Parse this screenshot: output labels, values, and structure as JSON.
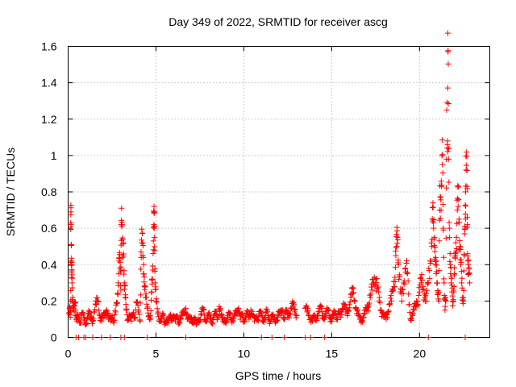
{
  "chart_data": {
    "type": "scatter",
    "title": "Day 349 of 2022, SRMTID for receiver ascg",
    "xlabel": "GPS time / hours",
    "ylabel": "SRMTID / TECUs",
    "xlim": [
      0,
      24
    ],
    "ylim": [
      0,
      1.6
    ],
    "xticks": [
      0,
      5,
      10,
      15,
      20
    ],
    "xtick_labels": [
      "0",
      "5",
      "10",
      "15",
      "20"
    ],
    "yticks": [
      0,
      0.2,
      0.4,
      0.6,
      0.8,
      1.0,
      1.2,
      1.4,
      1.6
    ],
    "ytick_labels": [
      "0",
      "0.2",
      "0.4",
      "0.6",
      "0.8",
      "1",
      "1.2",
      "1.4",
      "1.6"
    ],
    "grid": true,
    "marker": "plus",
    "color": "#ff0000",
    "series": [
      {
        "name": "SRMTID",
        "points": [
          [
            0.05,
            0.13
          ],
          [
            0.1,
            0.15
          ],
          [
            0.12,
            0.11
          ],
          [
            0.15,
            0.2
          ],
          [
            0.15,
            0.63
          ],
          [
            0.16,
            0.61
          ],
          [
            0.18,
            0.51
          ],
          [
            0.2,
            0.42
          ],
          [
            0.2,
            0.33
          ],
          [
            0.22,
            0.3
          ],
          [
            0.25,
            0.22
          ],
          [
            0.3,
            0.17
          ],
          [
            0.35,
            0.14
          ],
          [
            0.4,
            0.19
          ],
          [
            0.45,
            0.12
          ],
          [
            0.5,
            0.09
          ],
          [
            0.55,
            0.11
          ],
          [
            0.6,
            0.1
          ],
          [
            0.7,
            0.08
          ],
          [
            0.8,
            0.13
          ],
          [
            0.9,
            0.1
          ],
          [
            1.0,
            0.07
          ],
          [
            1.1,
            0.11
          ],
          [
            1.2,
            0.13
          ],
          [
            1.3,
            0.1
          ],
          [
            1.4,
            0.09
          ],
          [
            1.5,
            0.14
          ],
          [
            1.6,
            0.18
          ],
          [
            1.7,
            0.2
          ],
          [
            1.8,
            0.12
          ],
          [
            1.9,
            0.09
          ],
          [
            2.0,
            0.11
          ],
          [
            2.1,
            0.13
          ],
          [
            2.2,
            0.15
          ],
          [
            2.3,
            0.1
          ],
          [
            2.4,
            0.09
          ],
          [
            2.5,
            0.12
          ],
          [
            2.6,
            0.08
          ],
          [
            2.7,
            0.14
          ],
          [
            2.8,
            0.19
          ],
          [
            2.85,
            0.3
          ],
          [
            2.9,
            0.42
          ],
          [
            2.95,
            0.38
          ],
          [
            3.0,
            0.26
          ],
          [
            3.02,
            0.62
          ],
          [
            3.05,
            0.61
          ],
          [
            3.1,
            0.44
          ],
          [
            3.15,
            0.52
          ],
          [
            3.2,
            0.3
          ],
          [
            3.25,
            0.22
          ],
          [
            3.3,
            0.15
          ],
          [
            3.4,
            0.1
          ],
          [
            3.5,
            0.12
          ],
          [
            3.6,
            0.09
          ],
          [
            3.7,
            0.13
          ],
          [
            3.8,
            0.11
          ],
          [
            3.9,
            0.19
          ],
          [
            4.0,
            0.14
          ],
          [
            4.1,
            0.09
          ],
          [
            4.15,
            0.47
          ],
          [
            4.2,
            0.52
          ],
          [
            4.25,
            0.45
          ],
          [
            4.3,
            0.4
          ],
          [
            4.35,
            0.28
          ],
          [
            4.4,
            0.22
          ],
          [
            4.5,
            0.16
          ],
          [
            4.6,
            0.12
          ],
          [
            4.7,
            0.1
          ],
          [
            4.75,
            0.25
          ],
          [
            4.8,
            0.32
          ],
          [
            4.85,
            0.53
          ],
          [
            4.88,
            0.62
          ],
          [
            4.9,
            0.6
          ],
          [
            4.92,
            0.55
          ],
          [
            4.95,
            0.3
          ],
          [
            5.0,
            0.2
          ],
          [
            5.1,
            0.13
          ],
          [
            5.2,
            0.1
          ],
          [
            5.3,
            0.09
          ],
          [
            5.4,
            0.12
          ],
          [
            5.5,
            0.07
          ],
          [
            5.6,
            0.1
          ],
          [
            5.7,
            0.08
          ],
          [
            5.8,
            0.11
          ],
          [
            5.9,
            0.1
          ],
          [
            6.0,
            0.12
          ],
          [
            6.1,
            0.09
          ],
          [
            6.2,
            0.11
          ],
          [
            6.3,
            0.08
          ],
          [
            6.4,
            0.1
          ],
          [
            6.5,
            0.12
          ],
          [
            6.6,
            0.13
          ],
          [
            6.7,
            0.16
          ],
          [
            6.8,
            0.1
          ],
          [
            6.9,
            0.09
          ],
          [
            7.0,
            0.11
          ],
          [
            7.1,
            0.08
          ],
          [
            7.2,
            0.1
          ],
          [
            7.3,
            0.07
          ],
          [
            7.4,
            0.1
          ],
          [
            7.5,
            0.09
          ],
          [
            7.6,
            0.13
          ],
          [
            7.7,
            0.15
          ],
          [
            7.8,
            0.1
          ],
          [
            7.9,
            0.09
          ],
          [
            8.0,
            0.12
          ],
          [
            8.1,
            0.1
          ],
          [
            8.2,
            0.08
          ],
          [
            8.3,
            0.11
          ],
          [
            8.4,
            0.13
          ],
          [
            8.5,
            0.1
          ],
          [
            8.6,
            0.17
          ],
          [
            8.7,
            0.12
          ],
          [
            8.8,
            0.09
          ],
          [
            8.9,
            0.1
          ],
          [
            9.0,
            0.08
          ],
          [
            9.1,
            0.11
          ],
          [
            9.2,
            0.13
          ],
          [
            9.3,
            0.1
          ],
          [
            9.4,
            0.09
          ],
          [
            9.5,
            0.12
          ],
          [
            9.6,
            0.14
          ],
          [
            9.7,
            0.16
          ],
          [
            9.8,
            0.1
          ],
          [
            9.9,
            0.12
          ],
          [
            10.0,
            0.09
          ],
          [
            10.1,
            0.11
          ],
          [
            10.2,
            0.13
          ],
          [
            10.3,
            0.1
          ],
          [
            10.4,
            0.15
          ],
          [
            10.5,
            0.12
          ],
          [
            10.6,
            0.09
          ],
          [
            10.7,
            0.11
          ],
          [
            10.8,
            0.1
          ],
          [
            10.9,
            0.13
          ],
          [
            11.0,
            0.12
          ],
          [
            11.1,
            0.09
          ],
          [
            11.2,
            0.11
          ],
          [
            11.3,
            0.14
          ],
          [
            11.4,
            0.1
          ],
          [
            11.5,
            0.09
          ],
          [
            11.6,
            0.12
          ],
          [
            11.7,
            0.1
          ],
          [
            11.8,
            0.08
          ],
          [
            11.9,
            0.11
          ],
          [
            12.0,
            0.13
          ],
          [
            12.1,
            0.12
          ],
          [
            12.2,
            0.15
          ],
          [
            12.3,
            0.1
          ],
          [
            12.4,
            0.14
          ],
          [
            12.5,
            0.11
          ],
          [
            12.6,
            0.13
          ],
          [
            12.7,
            0.16
          ],
          [
            12.8,
            0.17
          ],
          [
            12.9,
            0.14
          ],
          [
            13.0,
            0.12
          ],
          [
            13.5,
            0.16
          ],
          [
            13.6,
            0.14
          ],
          [
            13.7,
            0.12
          ],
          [
            13.8,
            0.1
          ],
          [
            13.9,
            0.09
          ],
          [
            14.0,
            0.11
          ],
          [
            14.1,
            0.1
          ],
          [
            14.2,
            0.12
          ],
          [
            14.3,
            0.14
          ],
          [
            14.4,
            0.16
          ],
          [
            14.5,
            0.12
          ],
          [
            14.6,
            0.1
          ],
          [
            14.7,
            0.13
          ],
          [
            14.8,
            0.15
          ],
          [
            14.9,
            0.11
          ],
          [
            15.0,
            0.09
          ],
          [
            15.1,
            0.12
          ],
          [
            15.2,
            0.14
          ],
          [
            15.3,
            0.1
          ],
          [
            15.4,
            0.13
          ],
          [
            15.5,
            0.11
          ],
          [
            15.6,
            0.16
          ],
          [
            15.7,
            0.18
          ],
          [
            15.8,
            0.14
          ],
          [
            15.9,
            0.12
          ],
          [
            16.0,
            0.18
          ],
          [
            16.1,
            0.22
          ],
          [
            16.2,
            0.24
          ],
          [
            16.3,
            0.2
          ],
          [
            16.4,
            0.16
          ],
          [
            16.5,
            0.12
          ],
          [
            16.6,
            0.1
          ],
          [
            16.7,
            0.09
          ],
          [
            16.8,
            0.11
          ],
          [
            16.9,
            0.13
          ],
          [
            17.0,
            0.15
          ],
          [
            17.1,
            0.18
          ],
          [
            17.2,
            0.22
          ],
          [
            17.3,
            0.26
          ],
          [
            17.4,
            0.3
          ],
          [
            17.5,
            0.32
          ],
          [
            17.6,
            0.27
          ],
          [
            17.7,
            0.2
          ],
          [
            17.8,
            0.15
          ],
          [
            17.9,
            0.13
          ],
          [
            18.0,
            0.11
          ],
          [
            18.1,
            0.1
          ],
          [
            18.2,
            0.14
          ],
          [
            18.3,
            0.18
          ],
          [
            18.4,
            0.2
          ],
          [
            18.5,
            0.26
          ],
          [
            18.6,
            0.33
          ],
          [
            18.65,
            0.45
          ],
          [
            18.7,
            0.5
          ],
          [
            18.75,
            0.55
          ],
          [
            18.8,
            0.4
          ],
          [
            18.9,
            0.25
          ],
          [
            19.0,
            0.2
          ],
          [
            19.1,
            0.3
          ],
          [
            19.2,
            0.38
          ],
          [
            19.3,
            0.35
          ],
          [
            19.4,
            0.18
          ],
          [
            19.5,
            0.1
          ],
          [
            19.6,
            0.12
          ],
          [
            19.7,
            0.15
          ],
          [
            19.8,
            0.18
          ],
          [
            19.9,
            0.2
          ],
          [
            20.0,
            0.25
          ],
          [
            20.1,
            0.3
          ],
          [
            20.2,
            0.28
          ],
          [
            20.3,
            0.22
          ],
          [
            20.4,
            0.2
          ],
          [
            20.5,
            0.3
          ],
          [
            20.6,
            0.42
          ],
          [
            20.7,
            0.5
          ],
          [
            20.75,
            0.64
          ],
          [
            20.8,
            0.6
          ],
          [
            20.85,
            0.55
          ],
          [
            20.9,
            0.4
          ],
          [
            20.95,
            0.35
          ],
          [
            21.0,
            0.3
          ],
          [
            21.05,
            0.25
          ],
          [
            21.1,
            0.2
          ],
          [
            21.15,
            0.7
          ],
          [
            21.2,
            0.77
          ],
          [
            21.25,
            0.83
          ],
          [
            21.3,
            0.95
          ],
          [
            21.35,
            0.6
          ],
          [
            21.4,
            0.3
          ],
          [
            21.45,
            0.15
          ],
          [
            21.5,
            0.2
          ],
          [
            21.55,
            1.25
          ],
          [
            21.6,
            1.08
          ],
          [
            21.62,
            1.57
          ],
          [
            21.65,
            0.98
          ],
          [
            21.7,
            0.6
          ],
          [
            21.75,
            0.4
          ],
          [
            21.8,
            0.3
          ],
          [
            21.85,
            0.25
          ],
          [
            21.9,
            0.2
          ],
          [
            21.95,
            0.25
          ],
          [
            22.0,
            0.35
          ],
          [
            22.05,
            0.45
          ],
          [
            22.1,
            0.55
          ],
          [
            22.15,
            0.7
          ],
          [
            22.2,
            0.72
          ],
          [
            22.25,
            0.65
          ],
          [
            22.3,
            0.5
          ],
          [
            22.35,
            0.4
          ],
          [
            22.4,
            0.3
          ],
          [
            22.45,
            0.22
          ],
          [
            22.5,
            0.2
          ],
          [
            22.55,
            0.45
          ],
          [
            22.6,
            0.6
          ],
          [
            22.62,
            0.8
          ],
          [
            22.65,
            0.92
          ],
          [
            22.7,
            0.83
          ],
          [
            22.72,
            0.62
          ],
          [
            22.75,
            0.42
          ],
          [
            22.8,
            0.35
          ],
          [
            22.85,
            0.3
          ]
        ],
        "zero_points": [
          0.45,
          0.6,
          0.9,
          1.0,
          1.4,
          1.9,
          2.4,
          3.0,
          3.2,
          4.5,
          6.7,
          11.0,
          11.6,
          12.3,
          13.5,
          13.8,
          14.6,
          20.5,
          22.6
        ]
      }
    ]
  }
}
